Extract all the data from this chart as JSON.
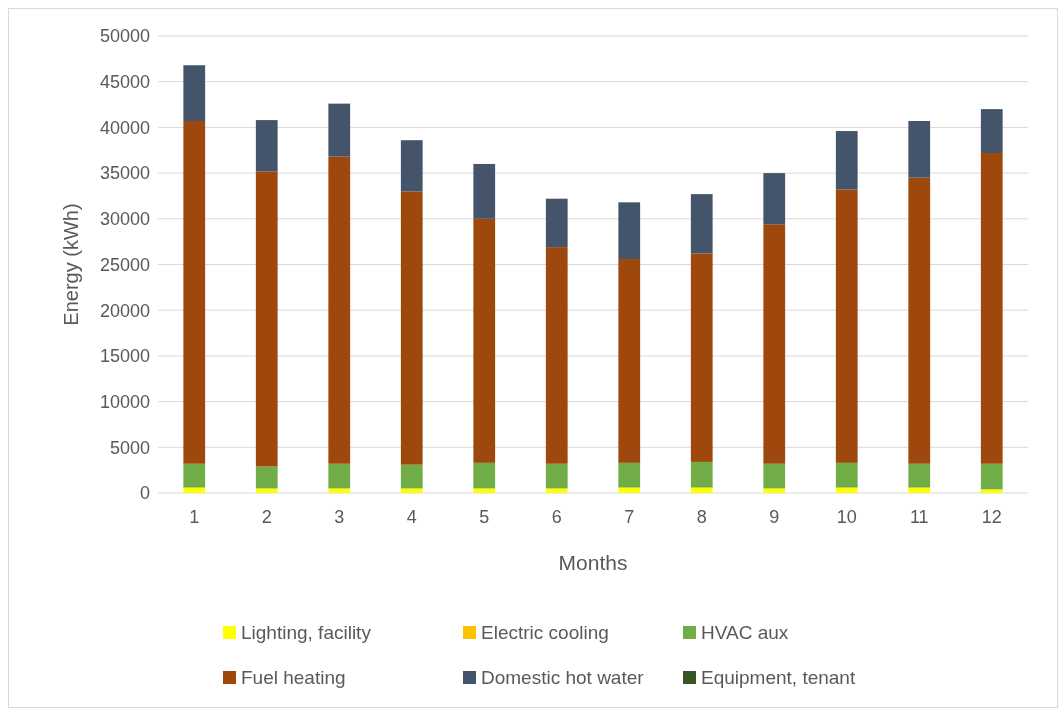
{
  "chart_data": {
    "type": "bar",
    "stacked": true,
    "xlabel": "Months",
    "ylabel": "Energy (kWh)",
    "categories": [
      "1",
      "2",
      "3",
      "4",
      "5",
      "6",
      "7",
      "8",
      "9",
      "10",
      "11",
      "12"
    ],
    "ylim": [
      0,
      50000
    ],
    "yticks": [
      0,
      5000,
      10000,
      15000,
      20000,
      25000,
      30000,
      35000,
      40000,
      45000,
      50000
    ],
    "grid": "y",
    "legend": "bottom",
    "series": [
      {
        "name": "Lighting, facility",
        "color": "#ffff00",
        "values": [
          600,
          500,
          500,
          500,
          500,
          500,
          600,
          600,
          500,
          600,
          600,
          400
        ]
      },
      {
        "name": "Electric cooling",
        "color": "#ffc000",
        "values": [
          0,
          0,
          0,
          0,
          0,
          0,
          0,
          0,
          0,
          0,
          0,
          0
        ]
      },
      {
        "name": "HVAC aux",
        "color": "#70ad47",
        "values": [
          2600,
          2400,
          2700,
          2600,
          2800,
          2700,
          2700,
          2800,
          2700,
          2700,
          2600,
          2800
        ]
      },
      {
        "name": "Fuel heating",
        "color": "#9e480e",
        "values": [
          37500,
          32300,
          33600,
          29900,
          26700,
          23700,
          22300,
          22800,
          26200,
          29900,
          31300,
          34000
        ]
      },
      {
        "name": "Domestic hot water",
        "color": "#44546a",
        "values": [
          6100,
          5600,
          5800,
          5600,
          6000,
          5300,
          6200,
          6500,
          5600,
          6400,
          6200,
          4800
        ]
      },
      {
        "name": "Equipment, tenant",
        "color": "#375623",
        "values": [
          0,
          0,
          0,
          0,
          0,
          0,
          0,
          0,
          0,
          0,
          0,
          0
        ]
      }
    ]
  }
}
